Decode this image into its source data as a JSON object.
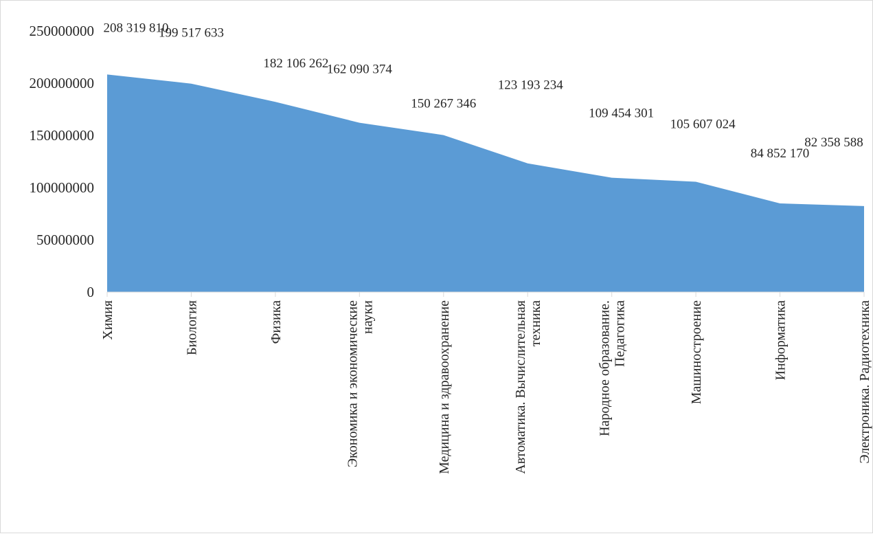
{
  "chart_data": {
    "type": "area",
    "categories": [
      "Химия",
      "Биология",
      "Физика",
      "Экономика и экономические науки",
      "Медицина и здравоохранение",
      "Автоматика. Вычислительная техника",
      "Народное образование. Педагогика",
      "Машиностроение",
      "Информатика",
      "Электроника. Радиотехника"
    ],
    "values": [
      208319810,
      199517633,
      182106262,
      162090374,
      150267346,
      123193234,
      109454301,
      105607024,
      84852170,
      82358588
    ],
    "data_labels": [
      "208 319 810",
      "199 517 633",
      "182 106 262",
      "162 090 374",
      "150 267 346",
      "123 193 234",
      "109 454 301",
      "105 607 024",
      "84 852 170",
      "82 358 588"
    ],
    "yticks": [
      {
        "value": 0,
        "label": "0"
      },
      {
        "value": 50000000,
        "label": "50000000"
      },
      {
        "value": 100000000,
        "label": "100000000"
      },
      {
        "value": 150000000,
        "label": "150000000"
      },
      {
        "value": 200000000,
        "label": "200000000"
      },
      {
        "value": 250000000,
        "label": "250000000"
      }
    ],
    "ylim": [
      0,
      250000000
    ],
    "title": "",
    "xlabel": "",
    "ylabel": "",
    "grid": false,
    "legend": "none",
    "fill_color": "#5b9bd5",
    "axis_color": "#d9d9d9"
  }
}
